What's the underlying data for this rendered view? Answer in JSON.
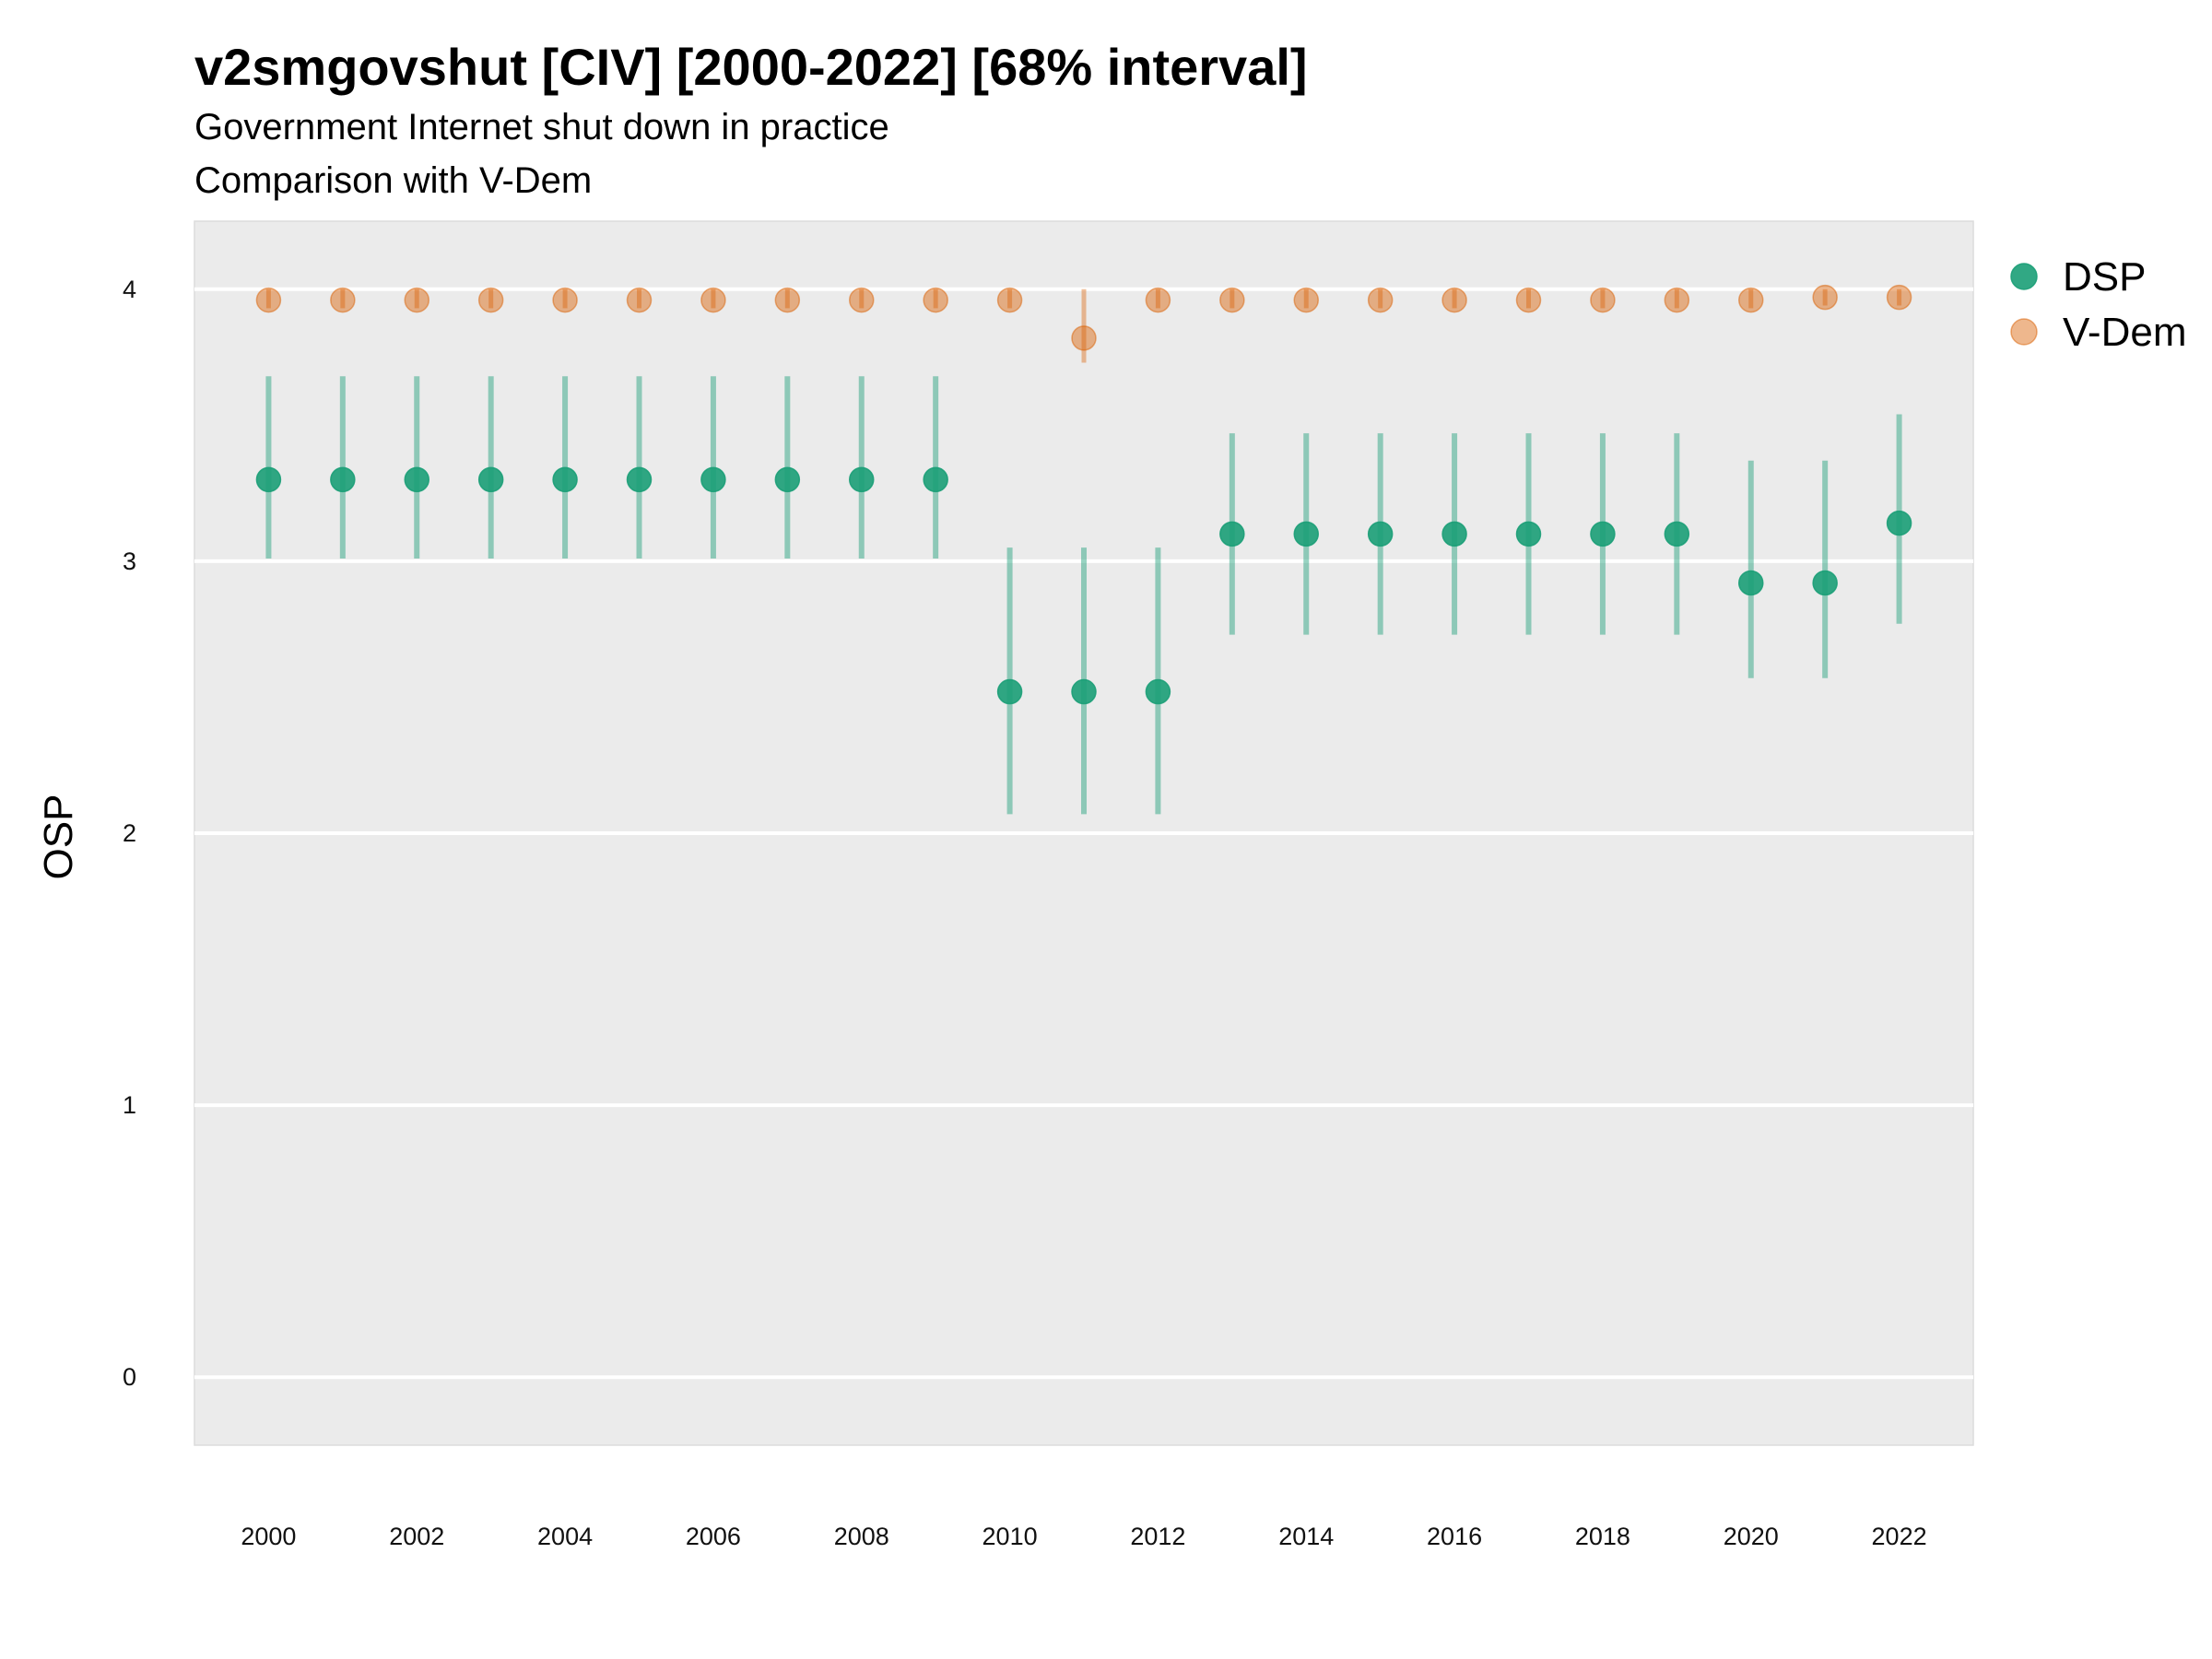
{
  "chart_data": {
    "type": "scatter",
    "title": "v2smgovshut [CIV] [2000-2022] [68% interval]",
    "subtitle_lines": [
      "Government Internet shut down in practice",
      "Comparison with V-Dem"
    ],
    "xlabel": "",
    "ylabel": "OSP",
    "ylim": [
      -0.25,
      4.25
    ],
    "xlim": [
      1999,
      2023
    ],
    "yticks": [
      0,
      1,
      2,
      3,
      4
    ],
    "xticks": [
      2000,
      2002,
      2004,
      2006,
      2008,
      2010,
      2012,
      2014,
      2016,
      2018,
      2020,
      2022
    ],
    "grid": "horizontal major",
    "legend_position": "right",
    "x": [
      2000,
      2001,
      2002,
      2003,
      2004,
      2005,
      2006,
      2007,
      2008,
      2009,
      2010,
      2011,
      2012,
      2013,
      2014,
      2015,
      2016,
      2017,
      2018,
      2019,
      2020,
      2021,
      2022
    ],
    "series": [
      {
        "name": "DSP",
        "color": "#1b9e77",
        "values": [
          3.3,
          3.3,
          3.3,
          3.3,
          3.3,
          3.3,
          3.3,
          3.3,
          3.3,
          3.3,
          2.52,
          2.52,
          2.52,
          3.1,
          3.1,
          3.1,
          3.1,
          3.1,
          3.1,
          3.1,
          2.92,
          2.92,
          3.14
        ],
        "lower": [
          3.01,
          3.01,
          3.01,
          3.01,
          3.01,
          3.01,
          3.01,
          3.01,
          3.01,
          3.01,
          2.07,
          2.07,
          2.07,
          2.73,
          2.73,
          2.73,
          2.73,
          2.73,
          2.73,
          2.73,
          2.57,
          2.57,
          2.77
        ],
        "upper": [
          3.68,
          3.68,
          3.68,
          3.68,
          3.68,
          3.68,
          3.68,
          3.68,
          3.68,
          3.68,
          3.05,
          3.05,
          3.05,
          3.47,
          3.47,
          3.47,
          3.47,
          3.47,
          3.47,
          3.47,
          3.37,
          3.37,
          3.54
        ]
      },
      {
        "name": "V-Dem",
        "color": "#d95f02",
        "values": [
          3.96,
          3.96,
          3.96,
          3.96,
          3.96,
          3.96,
          3.96,
          3.96,
          3.96,
          3.96,
          3.96,
          3.82,
          3.96,
          3.96,
          3.96,
          3.96,
          3.96,
          3.96,
          3.96,
          3.96,
          3.96,
          3.97,
          3.97
        ],
        "lower": [
          3.93,
          3.93,
          3.93,
          3.93,
          3.93,
          3.93,
          3.93,
          3.93,
          3.93,
          3.93,
          3.93,
          3.73,
          3.93,
          3.93,
          3.93,
          3.93,
          3.93,
          3.93,
          3.93,
          3.93,
          3.93,
          3.94,
          3.94
        ],
        "upper": [
          4.0,
          4.0,
          4.0,
          4.0,
          4.0,
          4.0,
          4.0,
          4.0,
          4.0,
          4.0,
          4.0,
          4.0,
          4.0,
          4.0,
          4.0,
          4.0,
          4.0,
          4.0,
          4.0,
          4.0,
          4.0,
          4.0,
          4.0
        ]
      }
    ]
  }
}
